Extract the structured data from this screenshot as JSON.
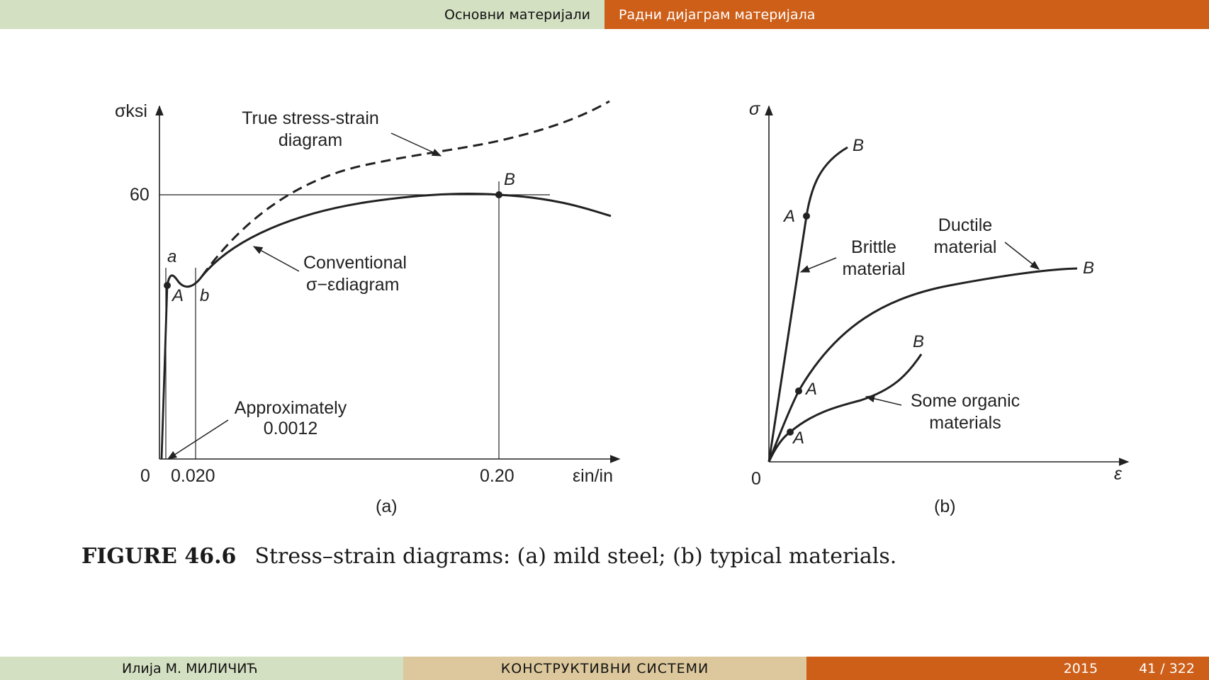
{
  "header": {
    "section": "Основни материјали",
    "subsection": "Радни дијаграм материјала"
  },
  "footer": {
    "author": "Илија М. МИЛИЧИЋ",
    "title": "КОНСТРУКТИВНИ СИСТЕМИ",
    "year": "2015",
    "page": "41 / 322"
  },
  "figure_a": {
    "y_axis_label": "σksi",
    "y_tick_60": "60",
    "origin": "0",
    "x_tick_0020": "0.020",
    "x_tick_020": "0.20",
    "x_axis_label": "εin/in",
    "sublabel": "(a)",
    "true_curve_label_1": "True stress-strain",
    "true_curve_label_2": "diagram",
    "conv_label_1": "Conventional",
    "conv_label_2": "σ−εdiagram",
    "approx_label_1": "Approximately",
    "approx_label_2": "0.0012",
    "point_a": "a",
    "point_A": "A",
    "point_b": "b",
    "point_B": "B"
  },
  "figure_b": {
    "y_axis_label": "σ",
    "x_axis_label": "ε",
    "origin": "0",
    "sublabel": "(b)",
    "brittle_label_1": "Brittle",
    "brittle_label_2": "material",
    "ductile_label_1": "Ductile",
    "ductile_label_2": "material",
    "organic_label_1": "Some organic",
    "organic_label_2": "materials",
    "brittle_A": "A",
    "brittle_B": "B",
    "ductile_A": "A",
    "ductile_B": "B",
    "organic_A": "A",
    "organic_B": "B"
  },
  "caption": {
    "number": "FIGURE 46.6",
    "text": "Stress–strain diagrams: (a) mild steel; (b) typical materials."
  }
}
